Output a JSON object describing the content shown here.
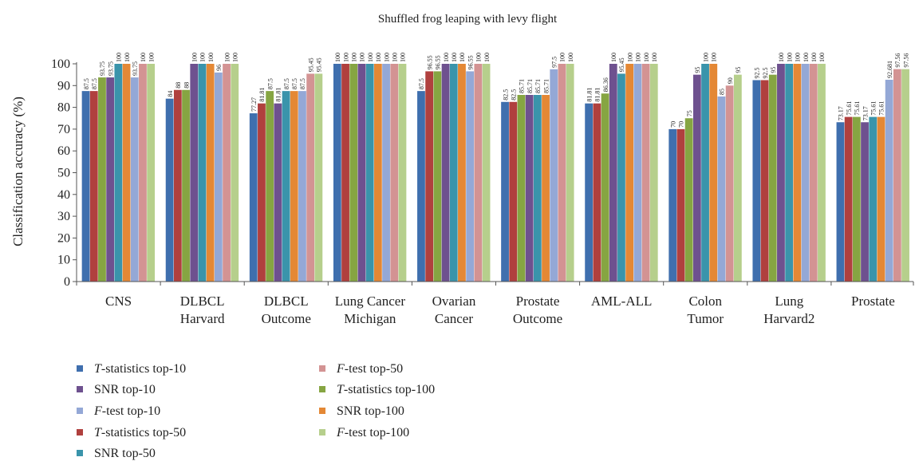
{
  "chart_data": {
    "type": "bar",
    "title": "Shuffled frog leaping with levy flight",
    "xlabel": "",
    "ylabel": "Classification accuracy (%)",
    "ylim": [
      0,
      100
    ],
    "yticks": [
      "0",
      "10",
      "20",
      "30",
      "40",
      "50",
      "60",
      "70",
      "80",
      "90",
      "100"
    ],
    "grid": false,
    "legend_position": "bottom-left",
    "categories": [
      [
        "CNS"
      ],
      [
        "DLBCL",
        "Harvard"
      ],
      [
        "DLBCL",
        "Outcome"
      ],
      [
        "Lung Cancer",
        "Michigan"
      ],
      [
        "Ovarian",
        "Cancer"
      ],
      [
        "Prostate",
        "Outcome"
      ],
      [
        "AML-ALL"
      ],
      [
        "Colon",
        "Tumor"
      ],
      [
        "Lung",
        "Harvard2"
      ],
      [
        "Prostate"
      ]
    ],
    "series": [
      {
        "name": "T-statistics top-10",
        "color": "#3f6fae",
        "values": [
          87.5,
          84,
          77.27,
          100,
          87.5,
          82.5,
          81.81,
          70,
          92.5,
          73.17
        ],
        "labels": [
          "87.5",
          "84",
          "77.27",
          "100",
          "87.5",
          "82.5",
          "81.81",
          "70",
          "92.5",
          "73.17"
        ]
      },
      {
        "name": "T-statistics top-50",
        "color": "#b0403e",
        "values": [
          87.5,
          88,
          81.81,
          100,
          96.55,
          82.5,
          81.81,
          70,
          92.5,
          75.61
        ],
        "labels": [
          "87.5",
          "88",
          "81.81",
          "100",
          "96.55",
          "82.5",
          "81.81",
          "70",
          "92.5",
          "75.61"
        ]
      },
      {
        "name": "T-statistics top-100",
        "color": "#86a542",
        "values": [
          93.75,
          88,
          87.5,
          100,
          96.55,
          85.71,
          86.36,
          75,
          95,
          75.61
        ],
        "labels": [
          "93.75",
          "88",
          "87.5",
          "100",
          "96.55",
          "85.71",
          "86.36",
          "75",
          "95",
          "75.61"
        ]
      },
      {
        "name": "SNR top-10",
        "color": "#6e518f",
        "values": [
          93.75,
          100,
          81.81,
          100,
          100,
          85.71,
          100,
          95,
          100,
          73.17
        ],
        "labels": [
          "93.75",
          "100",
          "81.81",
          "100",
          "100",
          "85.71",
          "100",
          "95",
          "100",
          "73.17"
        ]
      },
      {
        "name": "SNR top-50",
        "color": "#3a94ab",
        "values": [
          100,
          100,
          87.5,
          100,
          100,
          85.71,
          95.45,
          100,
          100,
          75.61
        ],
        "labels": [
          "100",
          "100",
          "87.5",
          "100",
          "100",
          "85.71",
          "95.45",
          "100",
          "100",
          "75.61"
        ]
      },
      {
        "name": "SNR top-100",
        "color": "#e48835",
        "values": [
          100,
          100,
          87.5,
          100,
          100,
          85.71,
          100,
          100,
          100,
          75.61
        ],
        "labels": [
          "100",
          "100",
          "87.5",
          "100",
          "100",
          "85.71",
          "100",
          "100",
          "100",
          "75.61"
        ]
      },
      {
        "name": "F-test top-10",
        "color": "#94a8d6",
        "values": [
          93.75,
          96,
          87.5,
          100,
          96.55,
          97.5,
          100,
          85,
          100,
          92.681
        ],
        "labels": [
          "93.75",
          "96",
          "87.5",
          "100",
          "96.55",
          "97.5",
          "100",
          "85",
          "100",
          "92.681"
        ]
      },
      {
        "name": "F-test top-50",
        "color": "#d39393",
        "values": [
          100,
          100,
          95.45,
          100,
          100,
          100,
          100,
          90,
          100,
          97.56
        ],
        "labels": [
          "100",
          "100",
          "95.45",
          "100",
          "100",
          "100",
          "100",
          "90",
          "100",
          "97.56"
        ]
      },
      {
        "name": "F-test top-100",
        "color": "#b6cf8c",
        "values": [
          100,
          100,
          95.45,
          100,
          100,
          100,
          100,
          95,
          100,
          97.56
        ],
        "labels": [
          "100",
          "100",
          "95.45",
          "100",
          "100",
          "100",
          "100",
          "95",
          "100",
          "97.56"
        ]
      }
    ],
    "legend": [
      {
        "prefix": "T",
        "suffix": "-statistics top-10",
        "color": "#3f6fae"
      },
      {
        "prefix": "",
        "suffix": "SNR top-10",
        "color": "#6e518f"
      },
      {
        "prefix": "F",
        "suffix": "-test top-10",
        "color": "#94a8d6"
      },
      {
        "prefix": "T",
        "suffix": "-statistics top-50",
        "color": "#b0403e"
      },
      {
        "prefix": "",
        "suffix": "SNR top-50",
        "color": "#3a94ab"
      },
      {
        "prefix": "F",
        "suffix": "-test top-50",
        "color": "#d39393"
      },
      {
        "prefix": "T",
        "suffix": "-statistics top-100",
        "color": "#86a542"
      },
      {
        "prefix": "",
        "suffix": "SNR top-100",
        "color": "#e48835"
      },
      {
        "prefix": "F",
        "suffix": "-test top-100",
        "color": "#b6cf8c"
      }
    ]
  }
}
